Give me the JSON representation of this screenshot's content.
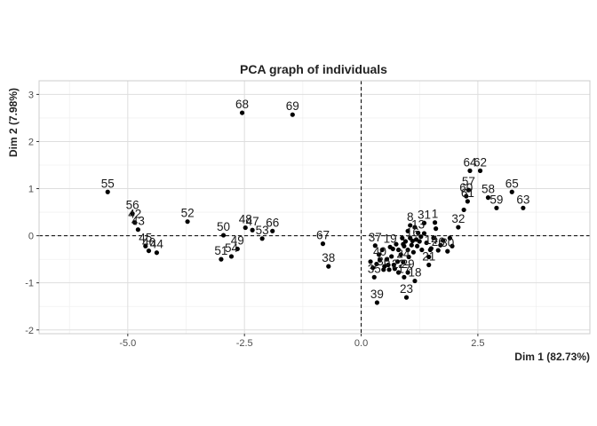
{
  "chart_data": {
    "type": "scatter",
    "title": "PCA graph of individuals",
    "xlabel": "Dim 1 (82.73%)",
    "ylabel": "Dim 2 (7.98%)",
    "xlim": [
      -6.9,
      4.9
    ],
    "ylim": [
      -2.08,
      3.29
    ],
    "xticks": [
      -5.0,
      -2.5,
      0.0,
      2.5
    ],
    "xtick_labels": [
      "-5.0",
      "-2.5",
      "0.0",
      "2.5"
    ],
    "yticks": [
      -2,
      -1,
      0,
      1,
      2,
      3
    ],
    "ytick_labels": [
      "-2",
      "-1",
      "0",
      "1",
      "2",
      "3"
    ],
    "grid": true,
    "reference_lines": {
      "x": 0,
      "y": 0
    },
    "point_color": "#000000",
    "points": [
      {
        "label": "68",
        "x": -2.55,
        "y": 2.61
      },
      {
        "label": "69",
        "x": -1.47,
        "y": 2.57
      },
      {
        "label": "55",
        "x": -5.43,
        "y": 0.93
      },
      {
        "label": "56",
        "x": -4.9,
        "y": 0.47
      },
      {
        "label": "42",
        "x": -4.85,
        "y": 0.28
      },
      {
        "label": "43",
        "x": -4.78,
        "y": 0.13
      },
      {
        "label": "52",
        "x": -3.72,
        "y": 0.3
      },
      {
        "label": "50",
        "x": -2.95,
        "y": 0.01
      },
      {
        "label": "48",
        "x": -2.48,
        "y": 0.17
      },
      {
        "label": "47",
        "x": -2.33,
        "y": 0.12
      },
      {
        "label": "66",
        "x": -1.9,
        "y": 0.1
      },
      {
        "label": "53",
        "x": -2.12,
        "y": -0.06
      },
      {
        "label": "49",
        "x": -2.65,
        "y": -0.28
      },
      {
        "label": "54",
        "x": -2.78,
        "y": -0.44
      },
      {
        "label": "51",
        "x": -3.0,
        "y": -0.5
      },
      {
        "label": "45",
        "x": -4.62,
        "y": -0.22
      },
      {
        "label": "46",
        "x": -4.55,
        "y": -0.32
      },
      {
        "label": "44",
        "x": -4.38,
        "y": -0.36
      },
      {
        "label": "67",
        "x": -0.82,
        "y": -0.17
      },
      {
        "label": "38",
        "x": -0.7,
        "y": -0.65
      },
      {
        "label": "64",
        "x": 2.33,
        "y": 1.38
      },
      {
        "label": "62",
        "x": 2.55,
        "y": 1.38
      },
      {
        "label": "65",
        "x": 3.23,
        "y": 0.93
      },
      {
        "label": "57",
        "x": 2.3,
        "y": 0.97
      },
      {
        "label": "60",
        "x": 2.25,
        "y": 0.84
      },
      {
        "label": "61",
        "x": 2.28,
        "y": 0.73
      },
      {
        "label": "58",
        "x": 2.72,
        "y": 0.81
      },
      {
        "label": "59",
        "x": 2.9,
        "y": 0.59
      },
      {
        "label": "63",
        "x": 3.47,
        "y": 0.59
      },
      {
        "label": "32",
        "x": 2.08,
        "y": 0.18
      },
      {
        "label": "1",
        "x": 1.58,
        "y": 0.28
      },
      {
        "label": "31",
        "x": 1.35,
        "y": 0.27
      },
      {
        "label": "8",
        "x": 1.05,
        "y": 0.22
      },
      {
        "label": "13",
        "x": 1.22,
        "y": 0.06
      },
      {
        "label": "30",
        "x": 1.85,
        "y": -0.33
      },
      {
        "label": "26",
        "x": 1.65,
        "y": -0.31
      },
      {
        "label": "14",
        "x": 1.5,
        "y": -0.27
      },
      {
        "label": "16",
        "x": 1.1,
        "y": -0.11
      },
      {
        "label": "21",
        "x": 1.45,
        "y": -0.62
      },
      {
        "label": "24",
        "x": 0.9,
        "y": -0.56
      },
      {
        "label": "37",
        "x": 0.3,
        "y": -0.21
      },
      {
        "label": "19",
        "x": 0.62,
        "y": -0.24
      },
      {
        "label": "40",
        "x": 0.4,
        "y": -0.52
      },
      {
        "label": "36",
        "x": 0.48,
        "y": -0.72
      },
      {
        "label": "22",
        "x": 0.8,
        "y": -0.78
      },
      {
        "label": "29",
        "x": 1.0,
        "y": -0.78
      },
      {
        "label": "17",
        "x": 0.92,
        "y": -0.88
      },
      {
        "label": "35",
        "x": 0.28,
        "y": -0.88
      },
      {
        "label": "18",
        "x": 1.15,
        "y": -0.96
      },
      {
        "label": "23",
        "x": 0.97,
        "y": -1.31
      },
      {
        "label": "39",
        "x": 0.34,
        "y": -1.42
      }
    ],
    "extra_points": [
      [
        0.2,
        -0.55
      ],
      [
        0.25,
        -0.68
      ],
      [
        0.33,
        -0.6
      ],
      [
        0.38,
        -0.4
      ],
      [
        0.45,
        -0.3
      ],
      [
        0.5,
        -0.65
      ],
      [
        0.55,
        -0.5
      ],
      [
        0.6,
        -0.72
      ],
      [
        0.65,
        -0.44
      ],
      [
        0.7,
        -0.62
      ],
      [
        0.72,
        -0.7
      ],
      [
        0.75,
        -0.18
      ],
      [
        0.8,
        -0.3
      ],
      [
        0.85,
        -0.4
      ],
      [
        0.88,
        -0.05
      ],
      [
        0.92,
        -0.22
      ],
      [
        0.95,
        -0.12
      ],
      [
        1.0,
        -0.3
      ],
      [
        1.02,
        -0.45
      ],
      [
        1.05,
        -0.05
      ],
      [
        1.08,
        -0.2
      ],
      [
        1.12,
        -0.35
      ],
      [
        1.18,
        -0.08
      ],
      [
        1.2,
        -0.22
      ],
      [
        1.25,
        -0.12
      ],
      [
        1.3,
        -0.3
      ],
      [
        1.35,
        0.05
      ],
      [
        1.4,
        -0.15
      ],
      [
        1.45,
        -0.45
      ],
      [
        1.55,
        -0.05
      ],
      [
        1.6,
        0.15
      ],
      [
        1.7,
        -0.2
      ],
      [
        1.75,
        -0.1
      ],
      [
        1.9,
        -0.05
      ],
      [
        1.95,
        -0.22
      ],
      [
        2.2,
        0.55
      ],
      [
        1.0,
        0.1
      ],
      [
        0.9,
        -0.18
      ],
      [
        1.15,
        0.18
      ],
      [
        0.68,
        -0.28
      ],
      [
        0.78,
        -0.55
      ],
      [
        1.28,
        -0.02
      ],
      [
        0.58,
        -0.62
      ],
      [
        1.48,
        -0.3
      ]
    ]
  }
}
